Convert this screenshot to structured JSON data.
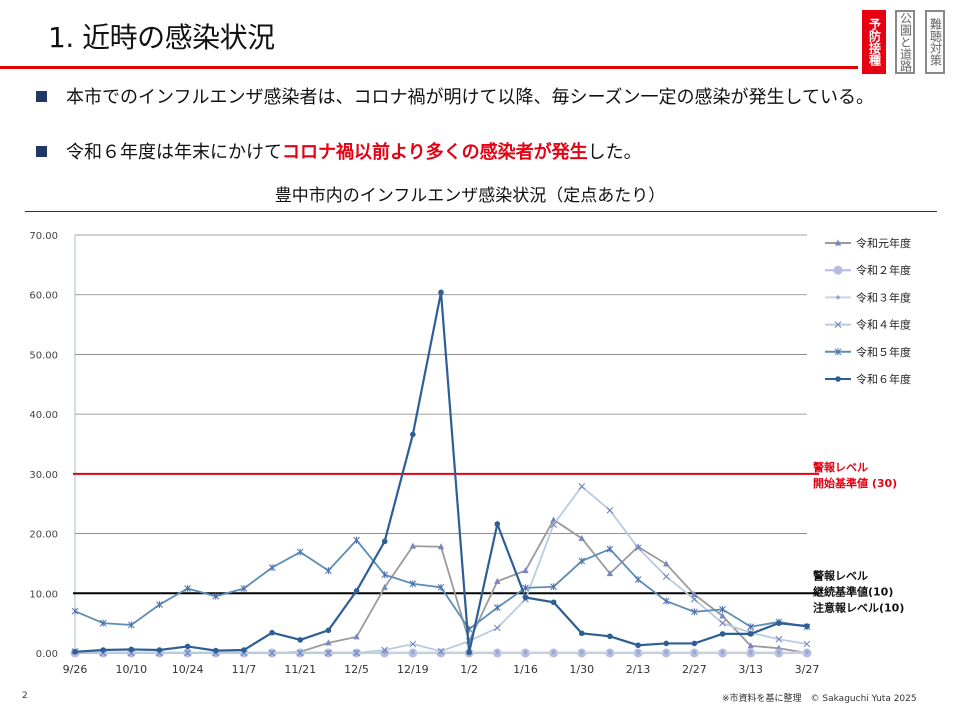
{
  "header": {
    "title": "1. 近時の感染状況",
    "tabs": [
      {
        "label": "予防接種",
        "active": true
      },
      {
        "label": "公園と道路",
        "active": false
      },
      {
        "label": "難聴対策",
        "active": false
      }
    ]
  },
  "bullets": [
    {
      "text": "本市でのインフルエンザ感染者は、コロナ禍が明けて以降、毎シーズン一定の感染が発生している。"
    },
    {
      "pre": "令和６年度は年末にかけて",
      "highlight": "コロナ禍以前より多くの感染者が発生",
      "post": "した。"
    }
  ],
  "colors": {
    "accent": "#e60012",
    "navy": "#1f3864"
  },
  "chart_data": {
    "type": "line",
    "title": "豊中市内のインフルエンザ感染状況（定点あたり）",
    "xlabel": "",
    "ylabel": "",
    "ylim": [
      0,
      70
    ],
    "yticks": [
      "0.00",
      "10.00",
      "20.00",
      "30.00",
      "40.00",
      "50.00",
      "60.00",
      "70.00"
    ],
    "x": [
      "9/26",
      "10/3",
      "10/10",
      "10/17",
      "10/24",
      "10/31",
      "11/7",
      "11/14",
      "11/21",
      "11/28",
      "12/5",
      "12/12",
      "12/19",
      "12/26",
      "1/2",
      "1/9",
      "1/16",
      "1/23",
      "1/30",
      "2/6",
      "2/13",
      "2/20",
      "2/27",
      "3/6",
      "3/13",
      "3/20",
      "3/27"
    ],
    "xtick_labels": [
      "9/26",
      "10/10",
      "10/24",
      "11/7",
      "11/21",
      "12/5",
      "12/19",
      "1/2",
      "1/16",
      "1/30",
      "2/13",
      "2/27",
      "3/13",
      "3/27"
    ],
    "grid": true,
    "legend": "right",
    "series": [
      {
        "name": "令和元年度",
        "color": "#9a9a9f",
        "marker": "triangle",
        "values": [
          0,
          0,
          0,
          0,
          0,
          0,
          0,
          0,
          0.2,
          1.7,
          2.7,
          11.0,
          17.9,
          17.8,
          2.0,
          12.0,
          13.8,
          22.3,
          19.2,
          13.3,
          17.8,
          14.9,
          9.8,
          6.2,
          1.2,
          0.8,
          0.0
        ]
      },
      {
        "name": "令和２年度",
        "color": "#b4bde0",
        "marker": "bigdot",
        "values": [
          0,
          0,
          0,
          0,
          0,
          0,
          0,
          0,
          0,
          0,
          0,
          0,
          0,
          0,
          0,
          0,
          0,
          0,
          0,
          0,
          0,
          0,
          0,
          0,
          0,
          0,
          0
        ]
      },
      {
        "name": "令和３年度",
        "color": "#c9d3e6",
        "marker": "diamond",
        "values": [
          0.2,
          0.1,
          0.1,
          0.1,
          0.1,
          0.1,
          0.1,
          0.1,
          0.1,
          0.1,
          0.1,
          0.1,
          0.1,
          0.1,
          0.1,
          0.1,
          0.1,
          0.1,
          0.1,
          0.1,
          0.1,
          0.1,
          0.1,
          0.1,
          0.1,
          0.1,
          0.1
        ]
      },
      {
        "name": "令和４年度",
        "color": "#b9cbe0",
        "marker": "x",
        "values": [
          0.3,
          0,
          0,
          0,
          0,
          0,
          0,
          0,
          0,
          0,
          0,
          0.5,
          1.5,
          0.3,
          2.0,
          4.2,
          9.0,
          21.5,
          27.9,
          23.9,
          17.6,
          12.8,
          9.0,
          5.0,
          3.4,
          2.3,
          1.5
        ]
      },
      {
        "name": "令和５年度",
        "color": "#5b8db5",
        "marker": "star",
        "values": [
          7.0,
          5.0,
          4.7,
          8.1,
          10.8,
          9.5,
          10.8,
          14.3,
          16.9,
          13.8,
          18.9,
          13.1,
          11.6,
          11.0,
          4.0,
          7.6,
          10.9,
          11.1,
          15.4,
          17.4,
          12.3,
          8.7,
          6.9,
          7.3,
          4.4,
          5.2,
          4.4
        ]
      },
      {
        "name": "令和６年度",
        "color": "#2e5f94",
        "marker": "dot",
        "values": [
          0.2,
          0.5,
          0.6,
          0.5,
          1.1,
          0.4,
          0.5,
          3.4,
          2.2,
          3.8,
          10.4,
          18.7,
          36.6,
          60.4,
          0.1,
          21.6,
          9.3,
          8.5,
          3.3,
          2.8,
          1.3,
          1.6,
          1.6,
          3.2,
          3.2,
          5.0,
          4.5
        ]
      }
    ],
    "reference_lines": [
      {
        "value": 30,
        "color": "#e60012",
        "labels": [
          "警報レベル",
          "開始基準値 (30)"
        ]
      },
      {
        "value": 10,
        "color": "#000000",
        "labels": [
          "警報レベル",
          "継続基準値(10)",
          "注意報レベル(10)"
        ]
      }
    ]
  },
  "footer": {
    "page": "2",
    "note": "※市資料を基に整理　© Sakaguchi Yuta 2025"
  }
}
